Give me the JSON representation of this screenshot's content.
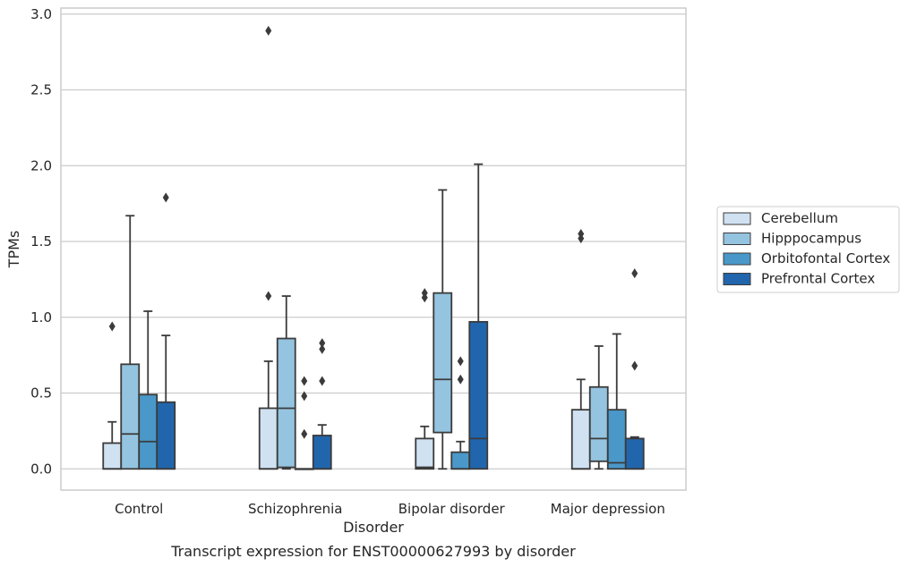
{
  "chart_data": {
    "type": "box",
    "xlabel": "Disorder",
    "ylabel": "TPMs",
    "caption": "Transcript expression for ENST00000627993 by disorder",
    "categories": [
      "Control",
      "Schizophrenia",
      "Bipolar disorder",
      "Major depression"
    ],
    "ylim": [
      -0.14,
      3.04
    ],
    "yticks": [
      0.0,
      0.5,
      1.0,
      1.5,
      2.0,
      2.5,
      3.0
    ],
    "ytick_labels": [
      "0.0",
      "0.5",
      "1.0",
      "1.5",
      "2.0",
      "2.5",
      "3.0"
    ],
    "grid": true,
    "legend_position": "right",
    "series": [
      {
        "name": "Cerebellum",
        "color": "#d0e1f2",
        "boxes": [
          {
            "min": 0.0,
            "q1": 0.0,
            "median": 0.0,
            "q3": 0.17,
            "max": 0.31,
            "outliers": [
              0.94
            ]
          },
          {
            "min": 0.0,
            "q1": 0.0,
            "median": 0.0,
            "q3": 0.4,
            "max": 0.71,
            "outliers": [
              1.14,
              2.89
            ]
          },
          {
            "min": 0.0,
            "q1": 0.0,
            "median": 0.01,
            "q3": 0.2,
            "max": 0.28,
            "outliers": [
              1.13,
              1.16
            ]
          },
          {
            "min": 0.0,
            "q1": 0.0,
            "median": 0.0,
            "q3": 0.39,
            "max": 0.59,
            "outliers": [
              1.52,
              1.55
            ]
          }
        ]
      },
      {
        "name": "Hipppocampus",
        "color": "#94c4df",
        "boxes": [
          {
            "min": 0.0,
            "q1": 0.0,
            "median": 0.23,
            "q3": 0.69,
            "max": 1.67,
            "outliers": []
          },
          {
            "min": 0.0,
            "q1": 0.01,
            "median": 0.4,
            "q3": 0.86,
            "max": 1.14,
            "outliers": []
          },
          {
            "min": 0.0,
            "q1": 0.24,
            "median": 0.59,
            "q3": 1.16,
            "max": 1.84,
            "outliers": []
          },
          {
            "min": 0.0,
            "q1": 0.05,
            "median": 0.2,
            "q3": 0.54,
            "max": 0.81,
            "outliers": []
          }
        ]
      },
      {
        "name": "Orbitofontal Cortex",
        "color": "#4a98c9",
        "boxes": [
          {
            "min": 0.0,
            "q1": 0.0,
            "median": 0.18,
            "q3": 0.49,
            "max": 1.04,
            "outliers": []
          },
          {
            "min": 0.0,
            "q1": 0.0,
            "median": 0.0,
            "q3": 0.0,
            "max": 0.0,
            "outliers": [
              0.23,
              0.48,
              0.58
            ]
          },
          {
            "min": 0.0,
            "q1": 0.0,
            "median": 0.0,
            "q3": 0.11,
            "max": 0.18,
            "outliers": [
              0.59,
              0.71
            ]
          },
          {
            "min": 0.0,
            "q1": 0.0,
            "median": 0.04,
            "q3": 0.39,
            "max": 0.89,
            "outliers": []
          }
        ]
      },
      {
        "name": "Prefrontal Cortex",
        "color": "#2166ac",
        "boxes": [
          {
            "min": 0.0,
            "q1": 0.0,
            "median": 0.0,
            "q3": 0.44,
            "max": 0.88,
            "outliers": [
              1.79
            ]
          },
          {
            "min": 0.0,
            "q1": 0.0,
            "median": 0.0,
            "q3": 0.22,
            "max": 0.29,
            "outliers": [
              0.58,
              0.79,
              0.83
            ]
          },
          {
            "min": 0.0,
            "q1": 0.0,
            "median": 0.2,
            "q3": 0.97,
            "max": 2.01,
            "outliers": []
          },
          {
            "min": 0.0,
            "q1": 0.0,
            "median": 0.0,
            "q3": 0.2,
            "max": 0.21,
            "outliers": [
              0.68,
              1.29
            ]
          }
        ]
      }
    ]
  }
}
